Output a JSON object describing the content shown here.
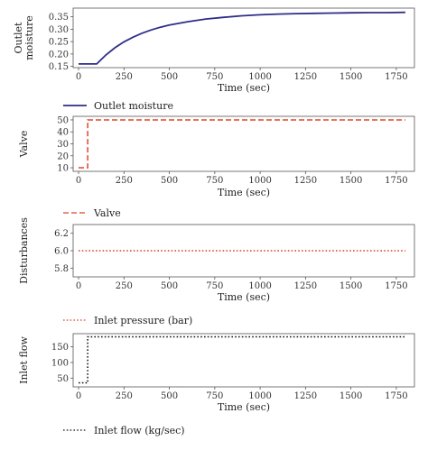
{
  "chart_data": [
    {
      "type": "line",
      "ylabel": "Outlet\nmoisture",
      "xlabel": "Time (sec)",
      "xlim": [
        -30,
        1850
      ],
      "ylim": [
        0.145,
        0.385
      ],
      "xticks": [
        0,
        250,
        500,
        750,
        1000,
        1250,
        1500,
        1750
      ],
      "yticks": [
        0.15,
        0.2,
        0.25,
        0.3,
        0.35
      ],
      "ytick_labels": [
        "0.15",
        "0.20",
        "0.25",
        "0.30",
        "0.35"
      ],
      "grid": false,
      "legend_placement": "below",
      "series": [
        {
          "name": "Outlet moisture",
          "color": "#2e2e8a",
          "style": "solid",
          "x": [
            0,
            100,
            150,
            200,
            250,
            300,
            350,
            400,
            450,
            500,
            600,
            700,
            800,
            900,
            1000,
            1100,
            1200,
            1300,
            1400,
            1500,
            1600,
            1700,
            1800
          ],
          "y": [
            0.16,
            0.16,
            0.196,
            0.225,
            0.249,
            0.268,
            0.284,
            0.297,
            0.308,
            0.317,
            0.33,
            0.341,
            0.348,
            0.354,
            0.358,
            0.361,
            0.363,
            0.364,
            0.365,
            0.366,
            0.367,
            0.367,
            0.368
          ]
        }
      ]
    },
    {
      "type": "line",
      "ylabel": "Valve",
      "xlabel": "Time (sec)",
      "xlim": [
        -30,
        1850
      ],
      "ylim": [
        7,
        53
      ],
      "xticks": [
        0,
        250,
        500,
        750,
        1000,
        1250,
        1500,
        1750
      ],
      "yticks": [
        10,
        20,
        30,
        40,
        50
      ],
      "ytick_labels": [
        "10",
        "20",
        "30",
        "40",
        "50"
      ],
      "grid": false,
      "legend_placement": "below",
      "series": [
        {
          "name": "Valve",
          "color": "#e0452a",
          "style": "dashed",
          "x": [
            0,
            50,
            50,
            1800
          ],
          "y": [
            10,
            10,
            50,
            50
          ]
        }
      ]
    },
    {
      "type": "line",
      "ylabel": "Disturbances",
      "xlabel": "Time (sec)",
      "xlim": [
        -30,
        1850
      ],
      "ylim": [
        5.7,
        6.3
      ],
      "xticks": [
        0,
        250,
        500,
        750,
        1000,
        1250,
        1500,
        1750
      ],
      "yticks": [
        5.8,
        6.0,
        6.2
      ],
      "ytick_labels": [
        "5.8",
        "6.0",
        "6.2"
      ],
      "grid": false,
      "legend_placement": "below",
      "series": [
        {
          "name": "Inlet pressure (bar)",
          "color": "#d9412b",
          "style": "dotted",
          "x": [
            0,
            1800
          ],
          "y": [
            6.0,
            6.0
          ]
        }
      ]
    },
    {
      "type": "line",
      "ylabel": "Inlet flow",
      "xlabel": "Time (sec)",
      "xlim": [
        -30,
        1850
      ],
      "ylim": [
        22,
        192
      ],
      "xticks": [
        0,
        250,
        500,
        750,
        1000,
        1250,
        1500,
        1750
      ],
      "yticks": [
        50,
        100,
        150
      ],
      "ytick_labels": [
        "50",
        "100",
        "150"
      ],
      "grid": false,
      "legend_placement": "below",
      "series": [
        {
          "name": "Inlet flow (kg/sec)",
          "color": "#111111",
          "style": "dotted",
          "x": [
            0,
            50,
            50,
            1800
          ],
          "y": [
            35,
            35,
            182,
            182
          ]
        }
      ]
    }
  ]
}
